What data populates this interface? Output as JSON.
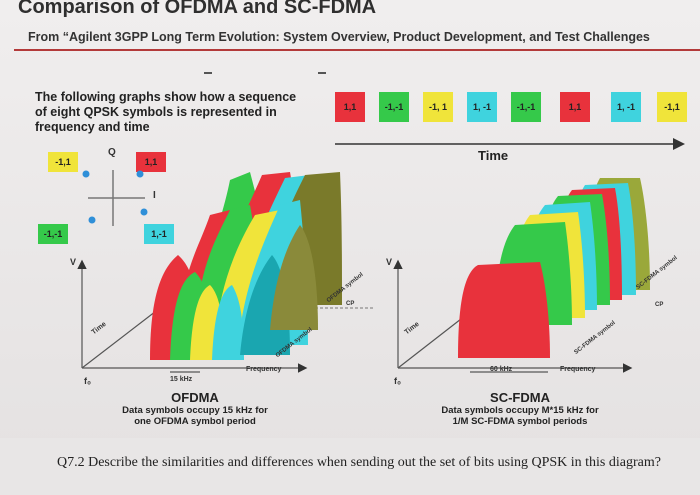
{
  "slide": {
    "title": "Comparison of OFDMA and SC-FDMA",
    "subtitle": "From “Agilent 3GPP Long Term Evolution: System Overview, Product Development, and Test Challenges"
  },
  "intro": "The following graphs show how a sequence of eight QPSK symbols is represented in frequency and time",
  "symbols": [
    {
      "label": "1,1",
      "color": "#e8323c"
    },
    {
      "label": "-1,-1",
      "color": "#35c94a"
    },
    {
      "label": "-1, 1",
      "color": "#f0e43a"
    },
    {
      "label": "1, -1",
      "color": "#3fd3de"
    },
    {
      "label": "-1,-1",
      "color": "#35c94a"
    },
    {
      "label": "1,1",
      "color": "#e8323c"
    },
    {
      "label": "1, -1",
      "color": "#3fd3de"
    },
    {
      "label": "-1,1",
      "color": "#f0e43a"
    }
  ],
  "time_label": "Time",
  "constellation": {
    "q_label": "Q",
    "i_label": "I",
    "points": [
      {
        "label": "-1,1",
        "color": "#f0e43a"
      },
      {
        "label": "1,1",
        "color": "#e8323c"
      },
      {
        "label": "-1,-1",
        "color": "#35c94a"
      },
      {
        "label": "1,-1",
        "color": "#3fd3de"
      }
    ]
  },
  "ofdma": {
    "v_axis": "V",
    "time_axis": "Time",
    "freq_axis": "Frequency",
    "f0": "f₀",
    "spacing": "15 kHz",
    "symbol_tag": "OFDMA symbol",
    "cp_tag": "CP",
    "name": "OFDMA",
    "desc_line1": "Data symbols occupy 15 kHz for",
    "desc_line2": "one OFDMA symbol period"
  },
  "scfdma": {
    "v_axis": "V",
    "time_axis": "Time",
    "freq_axis": "Frequency",
    "f0": "f₀",
    "bandwidth": "60 kHz",
    "symbol_tag": "SC-FDMA symbol",
    "cp_tag": "CP",
    "name": "SC-FDMA",
    "desc_line1": "Data symbols occupy M*15 kHz for",
    "desc_line2": "1/M SC-FDMA symbol periods"
  },
  "question": "Q7.2 Describe the similarities and differences when sending out the set of bits using QPSK in this diagram?"
}
